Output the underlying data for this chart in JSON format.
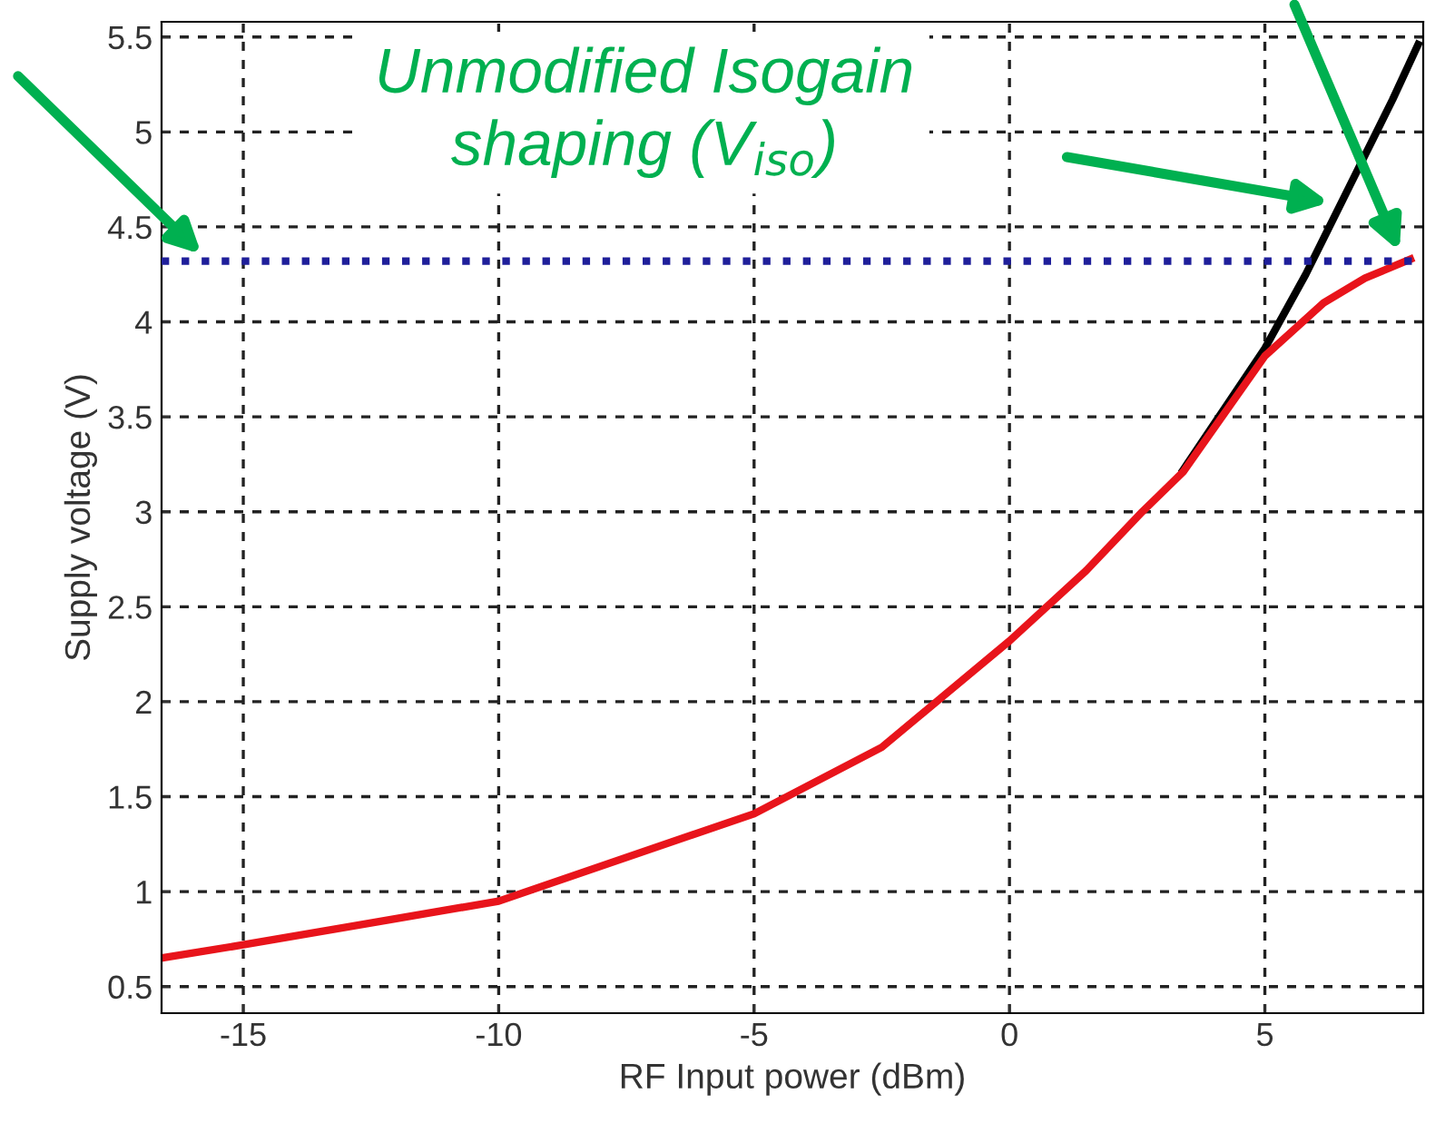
{
  "chart_data": {
    "type": "line",
    "xlabel": "RF Input power (dBm)",
    "ylabel": "Supply voltage (V)",
    "xlim": [
      -16.6,
      8.1
    ],
    "ylim": [
      0.36,
      5.58
    ],
    "xticks": [
      -15,
      -10,
      -5,
      0,
      5
    ],
    "yticks": [
      0.5,
      1,
      1.5,
      2,
      2.5,
      3,
      3.5,
      4,
      4.5,
      5,
      5.5
    ],
    "grid": true,
    "marker": "none",
    "line_style": "solid",
    "series": [
      {
        "color": "#000000",
        "x": [
          3.4,
          5.0,
          5.8,
          6.65,
          7.5,
          8.0
        ],
        "values": [
          3.22,
          3.86,
          4.25,
          4.71,
          5.17,
          5.46
        ]
      },
      {
        "color": "#e8141b",
        "x": [
          -16.6,
          -15,
          -10,
          -5,
          -2.5,
          0,
          1.5,
          2.6,
          3.4,
          5.0,
          6.15,
          6.96,
          7.85
        ],
        "values": [
          0.65,
          0.72,
          0.95,
          1.41,
          1.76,
          2.32,
          2.69,
          3.0,
          3.21,
          3.82,
          4.1,
          4.23,
          4.33
        ]
      }
    ],
    "ref_lines": [
      {
        "axis": "y",
        "value": 4.32,
        "color": "#1f1f9a",
        "line_style": "dotted"
      }
    ],
    "annotations": [
      "Unmodified Isogain\nshaping (V$_{iso}$)"
    ]
  }
}
